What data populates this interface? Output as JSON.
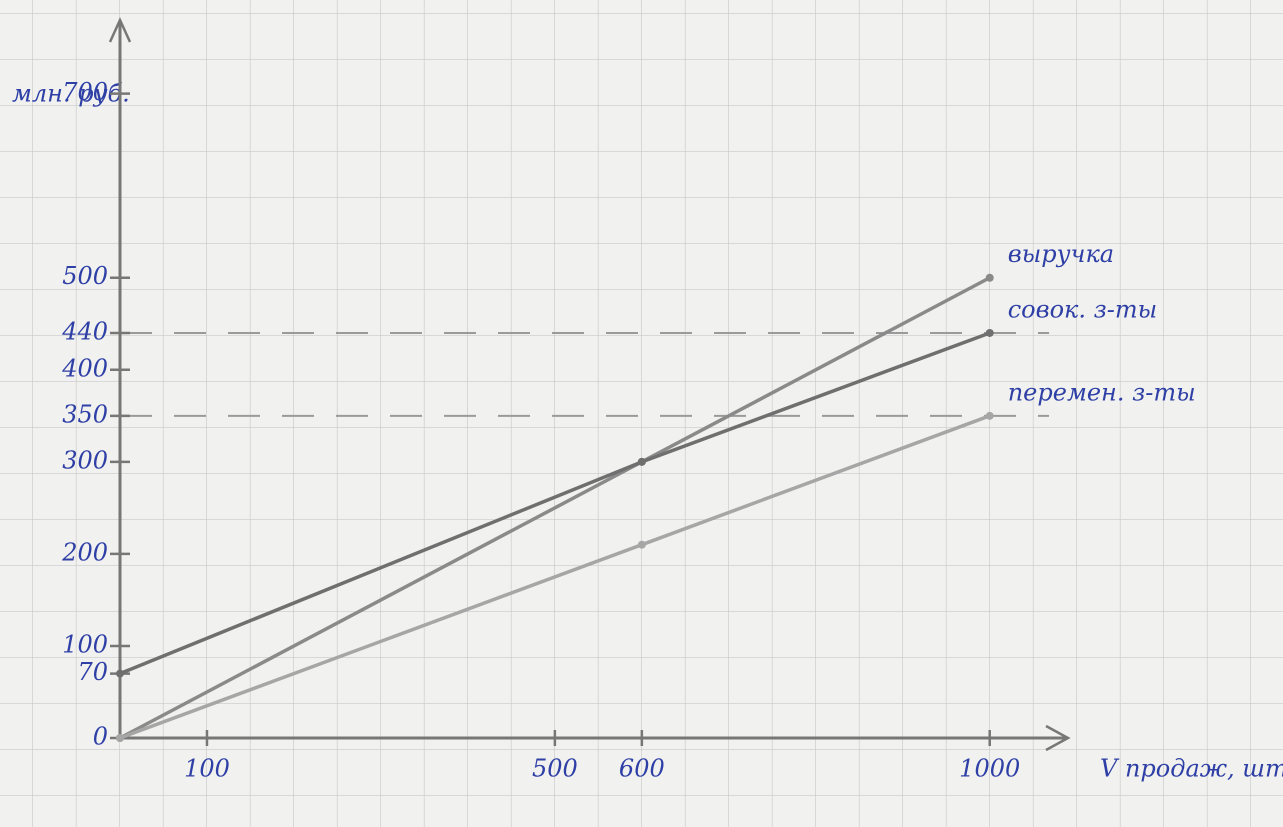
{
  "chart_data": {
    "type": "line",
    "y_label": "млн. руб.",
    "x_label": "V продаж, шт.",
    "x": [
      0,
      600,
      1000
    ],
    "series": [
      {
        "name": "выручка",
        "color": "#8a8a8a",
        "values": [
          0,
          300,
          500
        ]
      },
      {
        "name": "совок. з-ты",
        "color": "#6f6f6f",
        "values": [
          70,
          300,
          440
        ]
      },
      {
        "name": "перемен. з-ты",
        "color": "#a6a6a6",
        "values": [
          0,
          210,
          350
        ]
      }
    ],
    "xlim": [
      0,
      1090
    ],
    "ylim": [
      0,
      780
    ],
    "xticks": [
      100,
      500,
      600,
      1000
    ],
    "yticks": [
      0,
      70,
      100,
      200,
      300,
      350,
      400,
      440,
      500,
      700
    ],
    "reference_lines": [
      440,
      350
    ],
    "grid": true
  }
}
